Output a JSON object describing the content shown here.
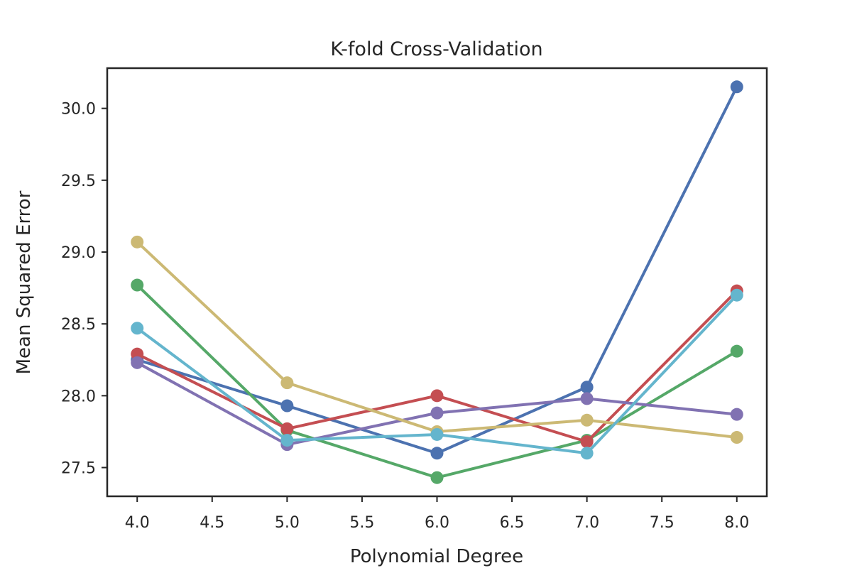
{
  "chart_data": {
    "type": "line",
    "title": "K-fold Cross-Validation",
    "xlabel": "Polynomial Degree",
    "ylabel": "Mean Squared Error",
    "x": [
      4,
      5,
      6,
      7,
      8
    ],
    "xlim": [
      3.8,
      8.2
    ],
    "ylim": [
      27.3,
      30.28
    ],
    "xticks": [
      "4.0",
      "4.5",
      "5.0",
      "5.5",
      "6.0",
      "6.5",
      "7.0",
      "7.5",
      "8.0"
    ],
    "yticks": [
      "27.5",
      "28.0",
      "28.5",
      "29.0",
      "29.5",
      "30.0"
    ],
    "grid": false,
    "legend": "none",
    "series": [
      {
        "color": "#4c72b0",
        "values": [
          28.25,
          27.93,
          27.6,
          28.06,
          30.15
        ]
      },
      {
        "color": "#55a868",
        "values": [
          28.77,
          27.76,
          27.43,
          27.69,
          28.31
        ]
      },
      {
        "color": "#c44e52",
        "values": [
          28.29,
          27.77,
          28.0,
          27.68,
          28.73
        ]
      },
      {
        "color": "#8172b2",
        "values": [
          28.23,
          27.66,
          27.88,
          27.98,
          27.87
        ]
      },
      {
        "color": "#ccb974",
        "values": [
          29.07,
          28.09,
          27.75,
          27.83,
          27.71
        ]
      },
      {
        "color": "#64b5cd",
        "values": [
          28.47,
          27.69,
          27.73,
          27.6,
          28.7
        ]
      }
    ]
  }
}
